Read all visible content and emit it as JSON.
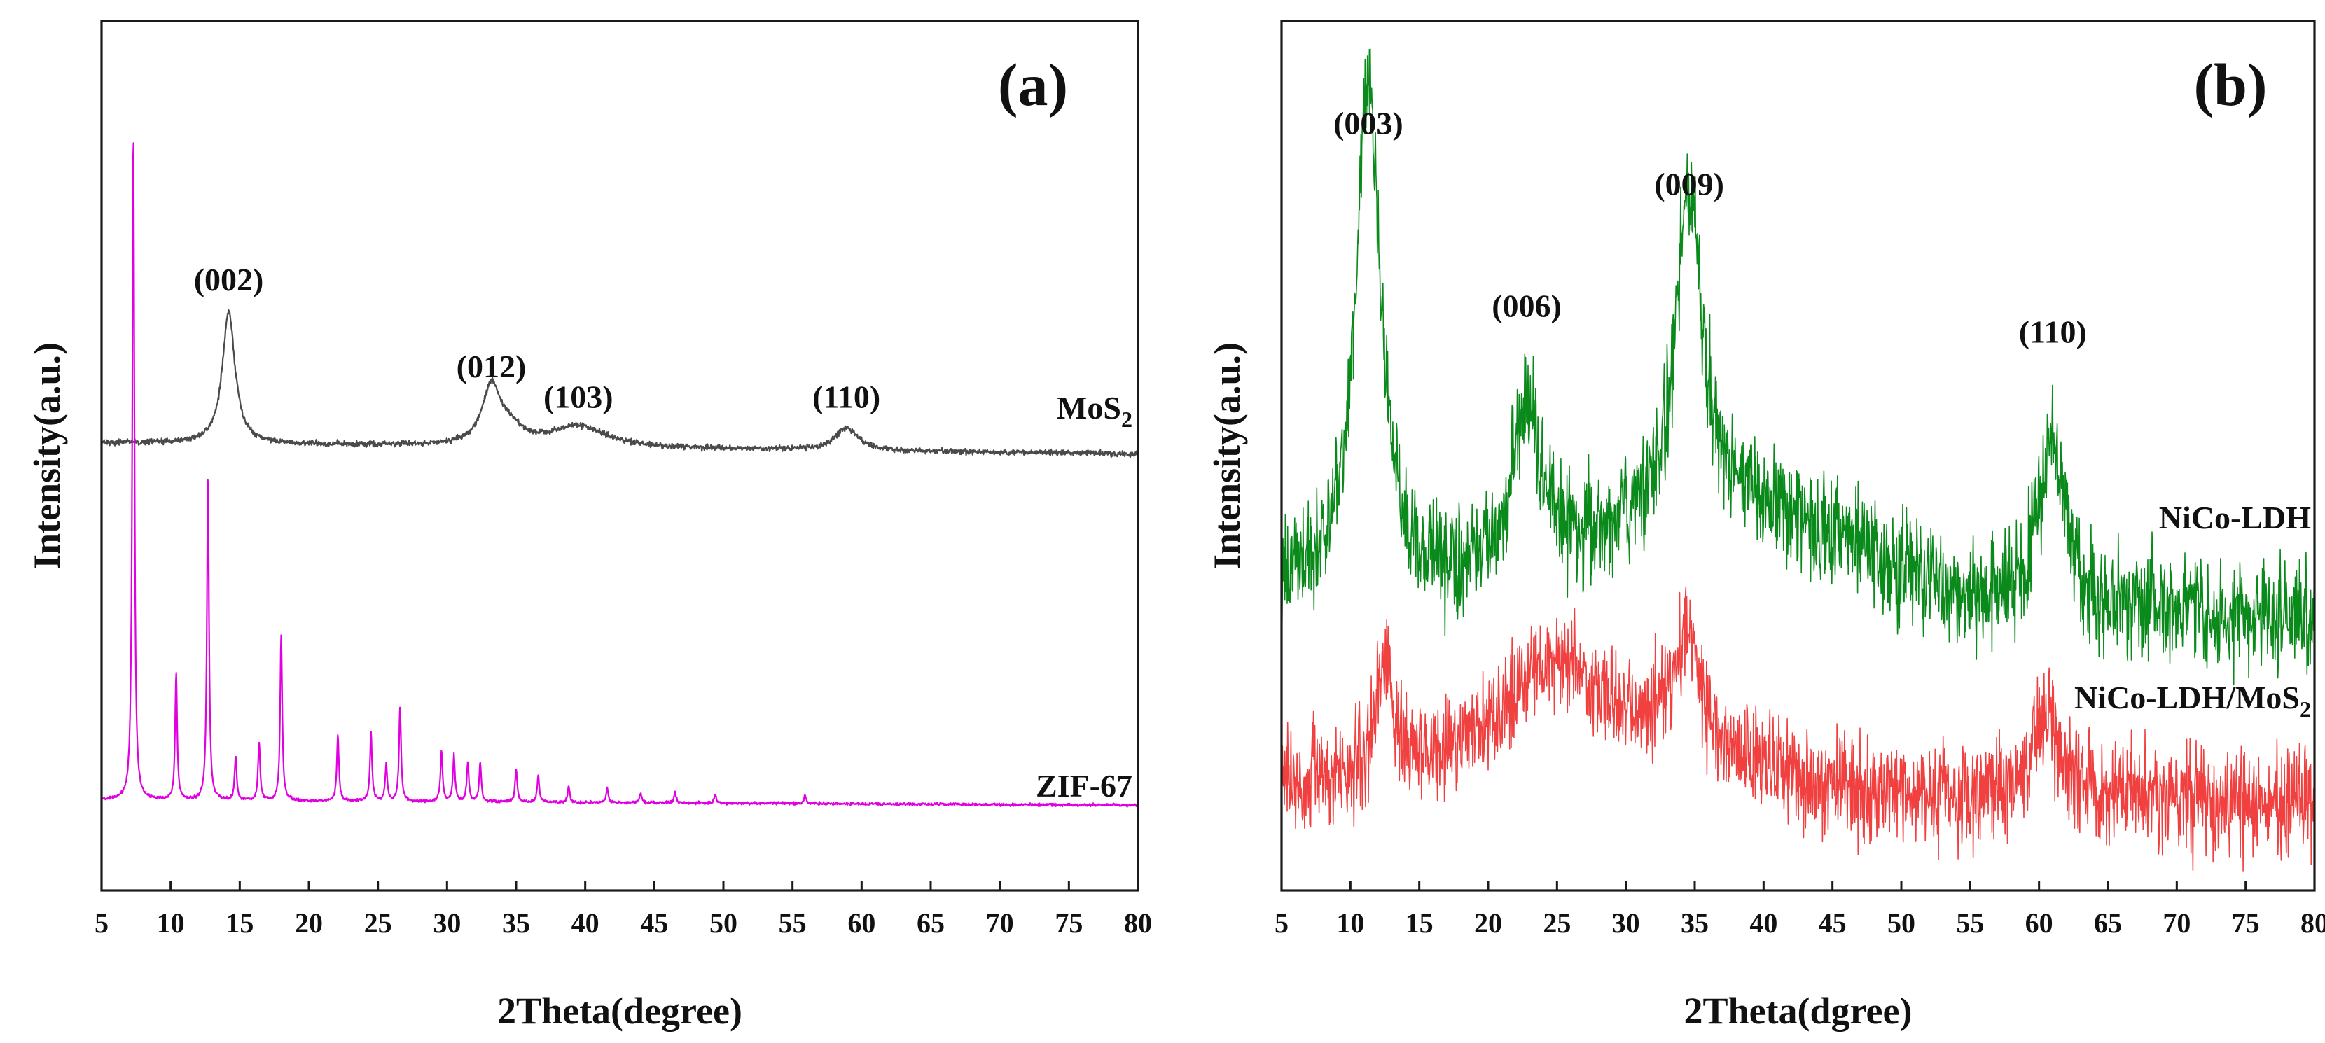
{
  "chart_data": [
    {
      "type": "line",
      "panel_label": "(a)",
      "xlabel": "2Theta(degree)",
      "ylabel": "Intensity(a.u.)",
      "xlim": [
        5,
        80
      ],
      "xticks": [
        5,
        10,
        15,
        20,
        25,
        30,
        35,
        40,
        45,
        50,
        55,
        60,
        65,
        70,
        75,
        80
      ],
      "ylim": [
        0,
        100
      ],
      "legend": "inline labels at right end of each trace",
      "series": [
        {
          "name": "MoS2",
          "label_main": "MoS",
          "label_sub": "2",
          "color": "#4a4a4a",
          "baseline": 51.5,
          "tail": 50.2,
          "noise": 0.35,
          "peaks": [
            {
              "x": 14.2,
              "h": 15.2,
              "w": 0.55
            },
            {
              "x": 33.2,
              "h": 6.4,
              "w": 0.8
            },
            {
              "x": 34.5,
              "h": 1.8,
              "w": 1.2
            },
            {
              "x": 39.5,
              "h": 2.4,
              "w": 2.4
            },
            {
              "x": 58.9,
              "h": 2.6,
              "w": 1.0
            }
          ]
        },
        {
          "name": "ZIF-67",
          "label_main": "ZIF-67",
          "label_sub": "",
          "color": "#e000e0",
          "baseline": 10.4,
          "tail": 9.8,
          "noise": 0.18,
          "peaks": [
            {
              "x": 7.3,
              "h": 77,
              "w": 0.09
            },
            {
              "x": 10.4,
              "h": 14.5,
              "w": 0.09
            },
            {
              "x": 12.7,
              "h": 37.5,
              "w": 0.09
            },
            {
              "x": 14.7,
              "h": 5.0,
              "w": 0.09
            },
            {
              "x": 16.4,
              "h": 6.8,
              "w": 0.09
            },
            {
              "x": 18.0,
              "h": 19.0,
              "w": 0.09
            },
            {
              "x": 22.1,
              "h": 7.5,
              "w": 0.09
            },
            {
              "x": 24.5,
              "h": 7.8,
              "w": 0.09
            },
            {
              "x": 25.6,
              "h": 4.2,
              "w": 0.09
            },
            {
              "x": 26.6,
              "h": 10.8,
              "w": 0.09
            },
            {
              "x": 29.6,
              "h": 5.8,
              "w": 0.09
            },
            {
              "x": 30.5,
              "h": 5.4,
              "w": 0.09
            },
            {
              "x": 31.5,
              "h": 4.5,
              "w": 0.09
            },
            {
              "x": 32.4,
              "h": 4.6,
              "w": 0.09
            },
            {
              "x": 35.0,
              "h": 3.8,
              "w": 0.09
            },
            {
              "x": 36.6,
              "h": 3.0,
              "w": 0.09
            },
            {
              "x": 38.8,
              "h": 1.8,
              "w": 0.09
            },
            {
              "x": 41.6,
              "h": 1.6,
              "w": 0.09
            },
            {
              "x": 44.0,
              "h": 1.1,
              "w": 0.09
            },
            {
              "x": 46.5,
              "h": 1.2,
              "w": 0.09
            },
            {
              "x": 49.4,
              "h": 1.0,
              "w": 0.09
            },
            {
              "x": 55.9,
              "h": 1.0,
              "w": 0.09
            }
          ]
        }
      ],
      "annotations": [
        {
          "text": "(002)",
          "x": 14.2,
          "y": 69
        },
        {
          "text": "(012)",
          "x": 33.2,
          "y": 59
        },
        {
          "text": "(103)",
          "x": 39.5,
          "y": 55.5
        },
        {
          "text": "(110)",
          "x": 58.9,
          "y": 55.5
        }
      ]
    },
    {
      "type": "line",
      "panel_label": "(b)",
      "xlabel": "2Theta(dgree)",
      "ylabel": "Intensity(a.u.)",
      "xlim": [
        5,
        80
      ],
      "xticks": [
        5,
        10,
        15,
        20,
        25,
        30,
        35,
        40,
        45,
        50,
        55,
        60,
        65,
        70,
        75,
        80
      ],
      "ylim": [
        0,
        100
      ],
      "legend": "inline labels at right end of each trace",
      "series": [
        {
          "name": "NiCo-LDH",
          "label_main": "NiCo-LDH",
          "label_sub": "",
          "color": "#0a8a1a",
          "baseline": 35,
          "tail": 31,
          "noise": 7.0,
          "hump": {
            "center": 38,
            "h": 11,
            "w": 12
          },
          "peaks": [
            {
              "x": 11.3,
              "h": 57,
              "w": 1.1
            },
            {
              "x": 22.8,
              "h": 19,
              "w": 1.3
            },
            {
              "x": 34.6,
              "h": 38,
              "w": 1.1
            },
            {
              "x": 61.0,
              "h": 20,
              "w": 1.1
            }
          ]
        },
        {
          "name": "NiCo-LDH/MoS2",
          "label_main": "NiCo-LDH/MoS",
          "label_sub": "2",
          "color": "#f04040",
          "baseline": 12,
          "tail": 10,
          "noise": 6.5,
          "hump": {
            "center": 28,
            "h": 6,
            "w": 12
          },
          "peaks": [
            {
              "x": 12.5,
              "h": 14,
              "w": 0.6
            },
            {
              "x": 24.5,
              "h": 9,
              "w": 4.0
            },
            {
              "x": 34.4,
              "h": 13,
              "w": 1.2
            },
            {
              "x": 60.6,
              "h": 9,
              "w": 1.2
            }
          ]
        }
      ],
      "annotations": [
        {
          "text": "(003)",
          "x": 11.3,
          "y": 87
        },
        {
          "text": "(006)",
          "x": 22.8,
          "y": 66
        },
        {
          "text": "(009)",
          "x": 34.6,
          "y": 80
        },
        {
          "text": "(110)",
          "x": 61.0,
          "y": 63
        }
      ]
    }
  ]
}
